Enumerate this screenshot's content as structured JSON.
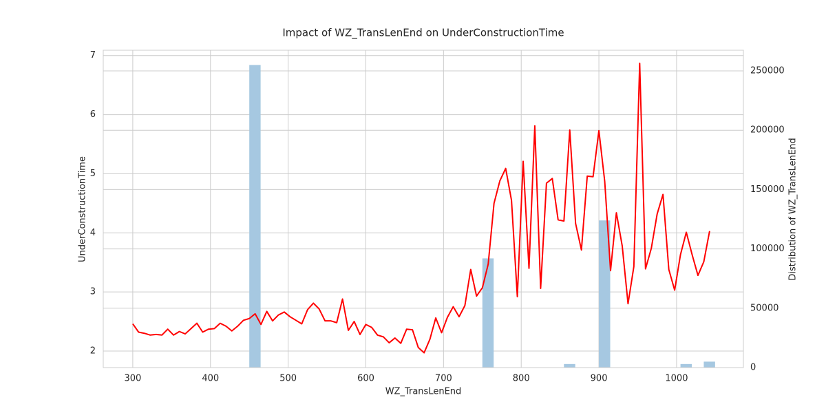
{
  "chart_data": {
    "type": "combo",
    "title": "Impact of WZ_TransLenEnd on UnderConstructionTime",
    "xlabel": "WZ_TransLenEnd",
    "ylabel": "UnderConstructionTime",
    "y2label": "Distribution of WZ_TransLenEnd",
    "xlim": [
      262,
      1086
    ],
    "xticks": [
      300,
      400,
      500,
      600,
      700,
      800,
      900,
      1000
    ],
    "ylim": [
      1.72,
      7.09
    ],
    "yticks": [
      2,
      3,
      4,
      5,
      6,
      7
    ],
    "y2lim": [
      0,
      267400
    ],
    "y2ticks": [
      0,
      50000,
      100000,
      150000,
      200000,
      250000
    ],
    "grid": true,
    "histogram": {
      "axis": "y2",
      "color": "#a6c8e1",
      "bins": [
        300,
        315,
        330,
        345,
        360,
        375,
        390,
        405,
        420,
        435,
        450,
        465,
        480,
        495,
        510,
        525,
        540,
        555,
        570,
        585,
        600,
        615,
        630,
        645,
        660,
        675,
        690,
        705,
        720,
        735,
        750,
        765,
        780,
        795,
        810,
        825,
        840,
        855,
        870,
        885,
        900,
        915,
        930,
        945,
        960,
        975,
        990,
        1005,
        1020,
        1035,
        1050
      ],
      "values": [
        0,
        0,
        0,
        0,
        0,
        0,
        0,
        0,
        0,
        0,
        255000,
        0,
        0,
        0,
        0,
        0,
        0,
        0,
        0,
        0,
        0,
        0,
        0,
        0,
        0,
        0,
        0,
        0,
        0,
        0,
        92000,
        0,
        0,
        0,
        0,
        0,
        0,
        3000,
        0,
        0,
        124000,
        0,
        0,
        0,
        0,
        0,
        0,
        3000,
        0,
        5000
      ]
    },
    "line": {
      "color": "#ff0000",
      "x": [
        300,
        307.5,
        315,
        322.5,
        330,
        337.5,
        345,
        352.5,
        360,
        367.5,
        375,
        382.5,
        390,
        397.5,
        405,
        412.5,
        420,
        427.5,
        435,
        442.5,
        450,
        457.5,
        465,
        472.5,
        480,
        487.5,
        495,
        502.5,
        510,
        517.5,
        525,
        532.5,
        540,
        547.5,
        555,
        562.5,
        570,
        577.5,
        585,
        592.5,
        600,
        607.5,
        615,
        622.5,
        630,
        637.5,
        645,
        652.5,
        660,
        667.5,
        675,
        682.5,
        690,
        697.5,
        705,
        712.5,
        720,
        727.5,
        735,
        742.5,
        750,
        757.5,
        765,
        772.5,
        780,
        787.5,
        795,
        802.5,
        810,
        817.5,
        825,
        832.5,
        840,
        847.5,
        855,
        862.5,
        870,
        877.5,
        885,
        892.5,
        900,
        907.5,
        915,
        922.5,
        930,
        937.5,
        945,
        952.5,
        960,
        967.5,
        975,
        982.5,
        990,
        997.5,
        1005,
        1012.5,
        1020,
        1027.5,
        1035,
        1042.5
      ],
      "values": [
        2.46,
        2.32,
        2.3,
        2.27,
        2.28,
        2.27,
        2.37,
        2.27,
        2.33,
        2.29,
        2.38,
        2.47,
        2.32,
        2.37,
        2.38,
        2.47,
        2.42,
        2.34,
        2.42,
        2.52,
        2.55,
        2.63,
        2.45,
        2.67,
        2.51,
        2.61,
        2.66,
        2.58,
        2.52,
        2.46,
        2.7,
        2.81,
        2.71,
        2.51,
        2.51,
        2.48,
        2.88,
        2.35,
        2.5,
        2.28,
        2.45,
        2.4,
        2.27,
        2.24,
        2.14,
        2.22,
        2.13,
        2.37,
        2.36,
        2.06,
        1.97,
        2.2,
        2.56,
        2.31,
        2.57,
        2.75,
        2.58,
        2.77,
        3.38,
        2.93,
        3.07,
        3.47,
        4.5,
        4.88,
        5.09,
        4.55,
        2.92,
        5.21,
        3.4,
        5.81,
        3.06,
        4.84,
        4.92,
        4.22,
        4.2,
        5.74,
        4.16,
        3.71,
        4.96,
        4.95,
        5.73,
        4.87,
        3.36,
        4.34,
        3.78,
        2.8,
        3.43,
        6.87,
        3.39,
        3.74,
        4.32,
        4.65,
        3.38,
        3.03,
        3.63,
        4.01,
        3.63,
        3.28,
        3.51,
        4.03
      ]
    }
  }
}
